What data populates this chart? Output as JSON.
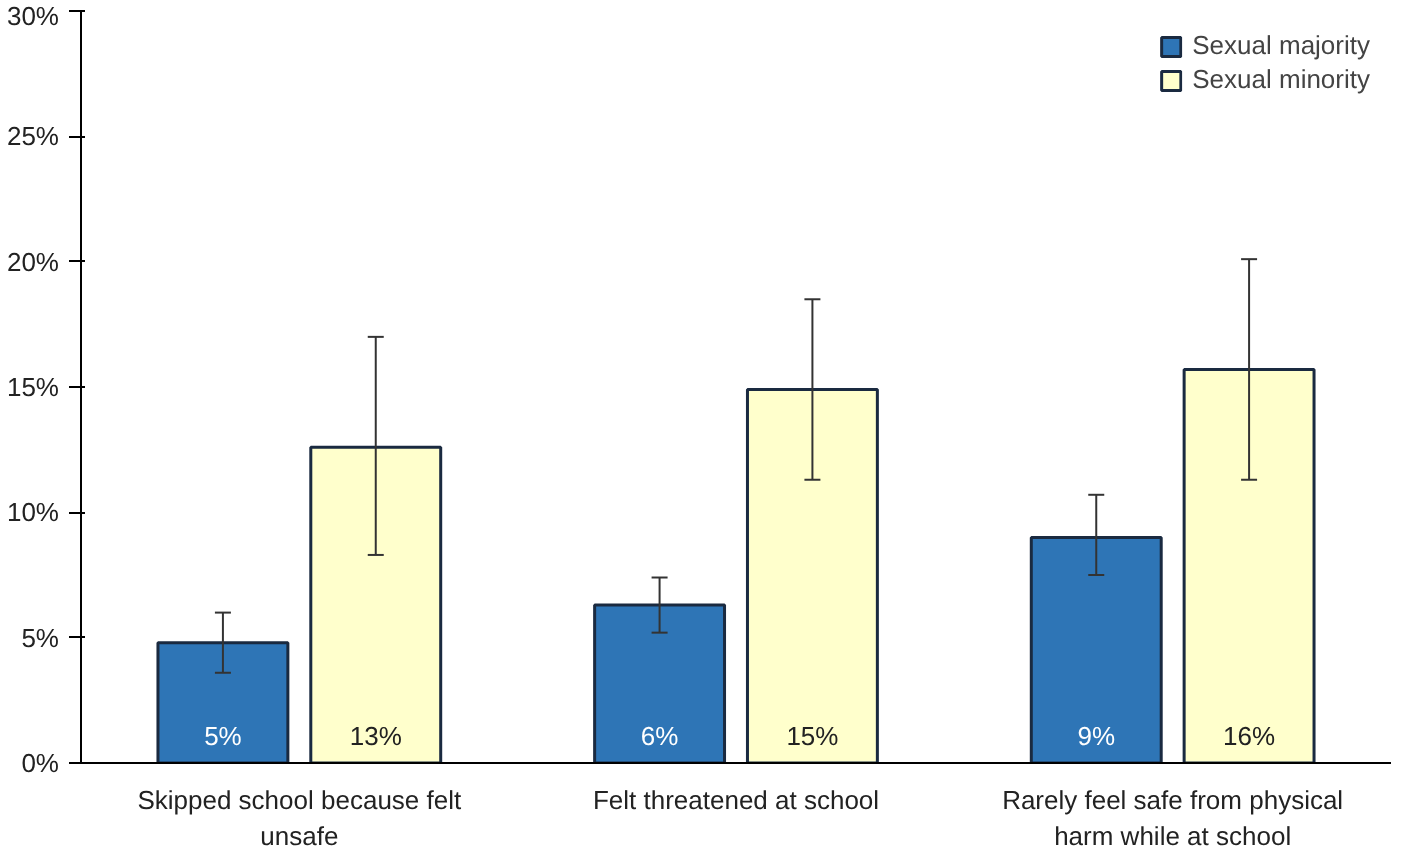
{
  "chart_data": {
    "type": "bar",
    "categories": [
      "Skipped school because felt unsafe",
      "Felt threatened at school",
      "Rarely feel safe from physical harm while at school"
    ],
    "series": [
      {
        "name": "Sexual majority",
        "color": "#2e75b6",
        "values": [
          4.8,
          6.3,
          9.0
        ],
        "errors": [
          [
            3.6,
            6.0
          ],
          [
            5.2,
            7.4
          ],
          [
            7.5,
            10.7
          ]
        ],
        "value_labels": [
          "5%",
          "6%",
          "9%"
        ]
      },
      {
        "name": "Sexual minority",
        "color": "#ffffcc",
        "values": [
          12.6,
          14.9,
          15.7
        ],
        "errors": [
          [
            8.3,
            17.0
          ],
          [
            11.3,
            18.5
          ],
          [
            11.3,
            20.1
          ]
        ],
        "value_labels": [
          "13%",
          "15%",
          "16%"
        ]
      }
    ],
    "ylim": [
      0,
      30
    ],
    "yticks": [
      {
        "value": 0,
        "label": "0%"
      },
      {
        "value": 5,
        "label": "5%"
      },
      {
        "value": 10,
        "label": "10%"
      },
      {
        "value": 15,
        "label": "15%"
      },
      {
        "value": 20,
        "label": "20%"
      },
      {
        "value": 25,
        "label": "25%"
      },
      {
        "value": 30,
        "label": "30%"
      }
    ],
    "grid": false,
    "legend": "top right"
  }
}
